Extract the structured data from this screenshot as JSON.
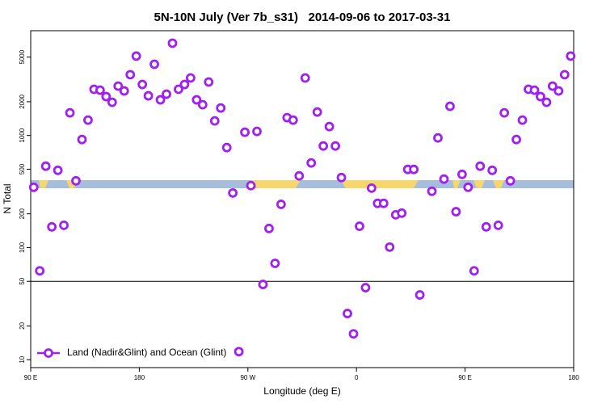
{
  "chart_data": {
    "type": "scatter",
    "title": "5N-10N July (Ver 7b_s31)   2014-09-06 to 2017-03-31",
    "x_label": "Longitude (deg E)",
    "y_label": "N Total",
    "log_y": true,
    "legend": "bottom-left",
    "hline": 50,
    "xlim": [
      90,
      540
    ],
    "xticks": [
      {
        "value": 90,
        "label": "90 E"
      },
      {
        "value": 180,
        "label": "180"
      },
      {
        "value": 270,
        "label": "90 W"
      },
      {
        "value": 360,
        "label": "0"
      },
      {
        "value": 450,
        "label": "90 E"
      },
      {
        "value": 540,
        "label": "180"
      }
    ],
    "ylim": [
      8.5,
      8600
    ],
    "yticks": [
      10,
      20,
      50,
      100,
      200,
      500,
      1000,
      2000,
      5000
    ],
    "x": [
      92.5,
      97.5,
      102.5,
      107.5,
      112.5,
      117.5,
      122.5,
      127.5,
      132.5,
      137.5,
      142.5,
      147.5,
      152.5,
      157.5,
      162.5,
      167.5,
      172.5,
      177.5,
      182.5,
      187.5,
      192.5,
      197.5,
      202.5,
      207.5,
      212.5,
      217.5,
      222.5,
      227.5,
      232.5,
      237.5,
      242.5,
      247.5,
      252.5,
      257.5,
      262.5,
      267.5,
      272.5,
      277.5,
      282.5,
      287.5,
      292.5,
      297.5,
      302.5,
      307.5,
      312.5,
      317.5,
      322.5,
      327.5,
      332.5,
      337.5,
      342.5,
      347.5,
      352.5,
      357.5,
      362.5,
      367.5,
      372.5,
      377.5,
      382.5,
      387.5,
      392.5,
      397.5,
      402.5,
      407.5,
      412.5,
      422.5,
      427.5,
      432.5,
      437.5,
      442.5,
      447.5,
      452.5,
      457.5,
      462.5,
      467.5,
      472.5,
      477.5,
      482.5,
      487.5,
      492.5,
      497.5,
      502.5,
      507.5,
      512.5,
      517.5,
      522.5,
      527.5,
      532.5,
      537.5
    ],
    "series": [
      {
        "name": "Land (Nadir&Glint) and Ocean (Glint)",
        "color": "#a020f0",
        "values": [
          345,
          62,
          532,
          153,
          489,
          158,
          1592,
          394,
          920,
          1371,
          2582,
          2535,
          2222,
          1977,
          2755,
          2495,
          3483,
          5105,
          2851,
          2259,
          4318,
          2080,
          2335,
          6653,
          2582,
          2851,
          3258,
          2080,
          1880,
          2999,
          1349,
          1759,
          780,
          307,
          11.8,
          1069,
          357,
          1087,
          46.9,
          148,
          72.3,
          243,
          1442,
          1371,
          436,
          3258,
          569,
          1618,
          806,
          1200,
          806,
          421,
          25.8,
          17.0,
          155,
          43.9,
          339,
          248,
          248,
          101,
          196,
          203,
          498,
          498,
          37.8,
          318,
          951,
          408,
          1820,
          209,
          450,
          345,
          62,
          532,
          153,
          489,
          158,
          1592,
          394,
          920,
          1371,
          2582,
          2535,
          2222,
          1977,
          2755,
          2495,
          3483,
          5105
        ]
      }
    ]
  }
}
